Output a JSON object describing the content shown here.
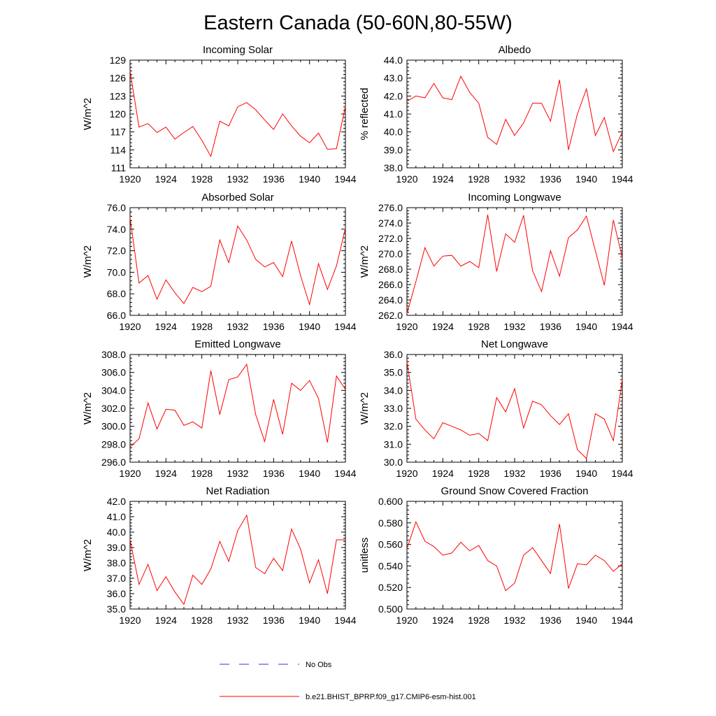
{
  "title": "Eastern Canada (50-60N,80-55W)",
  "legend": {
    "entries": [
      {
        "label": "No Obs",
        "color": "#3333cc",
        "style": "dashed"
      },
      {
        "label": "b.e21.BHIST_BPRP.f09_g17.CMIP6-esm-hist.001",
        "color": "#ff0000",
        "style": "solid"
      }
    ]
  },
  "chart_data": [
    {
      "type": "line",
      "title": "Incoming Solar",
      "xlabel": "",
      "ylabel": "W/m^2",
      "x": [
        1920,
        1921,
        1922,
        1923,
        1924,
        1925,
        1926,
        1927,
        1928,
        1929,
        1930,
        1931,
        1932,
        1933,
        1934,
        1935,
        1936,
        1937,
        1938,
        1939,
        1940,
        1941,
        1942,
        1943,
        1944
      ],
      "xlim": [
        1920,
        1944
      ],
      "xticks": [
        "1920",
        "1924",
        "1928",
        "1932",
        "1936",
        "1940",
        "1944"
      ],
      "ylim": [
        111,
        129
      ],
      "yticks": [
        "111",
        "114",
        "117",
        "120",
        "123",
        "126",
        "129"
      ],
      "series": [
        {
          "name": "b.e21.BHIST_BPRP.f09_g17.CMIP6-esm-hist.001",
          "color": "#ff0000",
          "values": [
            127.2,
            117.8,
            118.4,
            116.9,
            117.8,
            115.8,
            116.9,
            117.9,
            115.6,
            112.9,
            118.8,
            118.0,
            121.2,
            121.9,
            120.7,
            119.0,
            117.4,
            120.0,
            118.0,
            116.3,
            115.2,
            116.8,
            114.1,
            114.2,
            121.3
          ]
        }
      ]
    },
    {
      "type": "line",
      "title": "Albedo",
      "xlabel": "",
      "ylabel": "% reflected",
      "x": [
        1920,
        1921,
        1922,
        1923,
        1924,
        1925,
        1926,
        1927,
        1928,
        1929,
        1930,
        1931,
        1932,
        1933,
        1934,
        1935,
        1936,
        1937,
        1938,
        1939,
        1940,
        1941,
        1942,
        1943,
        1944
      ],
      "xlim": [
        1920,
        1944
      ],
      "xticks": [
        "1920",
        "1924",
        "1928",
        "1932",
        "1936",
        "1940",
        "1944"
      ],
      "ylim": [
        38,
        44
      ],
      "yticks": [
        "38.0",
        "39.0",
        "40.0",
        "41.0",
        "42.0",
        "43.0",
        "44.0"
      ],
      "series": [
        {
          "name": "b.e21.BHIST_BPRP.f09_g17.CMIP6-esm-hist.001",
          "color": "#ff0000",
          "values": [
            41.7,
            42.0,
            41.9,
            42.7,
            41.9,
            41.8,
            43.1,
            42.2,
            41.6,
            39.7,
            39.3,
            40.7,
            39.8,
            40.5,
            41.6,
            41.6,
            40.6,
            42.9,
            39.0,
            41.0,
            42.4,
            39.8,
            40.8,
            38.9,
            40.0
          ]
        }
      ]
    },
    {
      "type": "line",
      "title": "Absorbed Solar",
      "xlabel": "",
      "ylabel": "W/m^2",
      "x": [
        1920,
        1921,
        1922,
        1923,
        1924,
        1925,
        1926,
        1927,
        1928,
        1929,
        1930,
        1931,
        1932,
        1933,
        1934,
        1935,
        1936,
        1937,
        1938,
        1939,
        1940,
        1941,
        1942,
        1943,
        1944
      ],
      "xlim": [
        1920,
        1944
      ],
      "xticks": [
        "1920",
        "1924",
        "1928",
        "1932",
        "1936",
        "1940",
        "1944"
      ],
      "ylim": [
        66,
        76
      ],
      "yticks": [
        "66.0",
        "68.0",
        "70.0",
        "72.0",
        "74.0",
        "76.0"
      ],
      "series": [
        {
          "name": "b.e21.BHIST_BPRP.f09_g17.CMIP6-esm-hist.001",
          "color": "#ff0000",
          "values": [
            75.1,
            69.0,
            69.7,
            67.5,
            69.3,
            68.1,
            67.1,
            68.6,
            68.2,
            68.7,
            73.0,
            70.9,
            74.3,
            73.0,
            71.2,
            70.5,
            70.9,
            69.6,
            72.9,
            69.7,
            67.0,
            70.8,
            68.4,
            70.6,
            74.1
          ]
        }
      ]
    },
    {
      "type": "line",
      "title": "Incoming Longwave",
      "xlabel": "",
      "ylabel": "W/m^2",
      "x": [
        1920,
        1921,
        1922,
        1923,
        1924,
        1925,
        1926,
        1927,
        1928,
        1929,
        1930,
        1931,
        1932,
        1933,
        1934,
        1935,
        1936,
        1937,
        1938,
        1939,
        1940,
        1941,
        1942,
        1943,
        1944
      ],
      "xlim": [
        1920,
        1944
      ],
      "xticks": [
        "1920",
        "1924",
        "1928",
        "1932",
        "1936",
        "1940",
        "1944"
      ],
      "ylim": [
        262,
        276
      ],
      "yticks": [
        "262.0",
        "264.0",
        "266.0",
        "268.0",
        "270.0",
        "272.0",
        "274.0",
        "276.0"
      ],
      "series": [
        {
          "name": "b.e21.BHIST_BPRP.f09_g17.CMIP6-esm-hist.001",
          "color": "#ff0000",
          "values": [
            262.2,
            266.4,
            270.8,
            268.4,
            269.7,
            269.8,
            268.4,
            269.0,
            268.2,
            275.1,
            267.7,
            272.6,
            271.5,
            275.0,
            267.8,
            265.1,
            270.4,
            267.1,
            272.1,
            273.1,
            274.9,
            270.4,
            265.9,
            274.4,
            269.5
          ]
        }
      ]
    },
    {
      "type": "line",
      "title": "Emitted Longwave",
      "xlabel": "",
      "ylabel": "W/m^2",
      "x": [
        1920,
        1921,
        1922,
        1923,
        1924,
        1925,
        1926,
        1927,
        1928,
        1929,
        1930,
        1931,
        1932,
        1933,
        1934,
        1935,
        1936,
        1937,
        1938,
        1939,
        1940,
        1941,
        1942,
        1943,
        1944
      ],
      "xlim": [
        1920,
        1944
      ],
      "xticks": [
        "1920",
        "1924",
        "1928",
        "1932",
        "1936",
        "1940",
        "1944"
      ],
      "ylim": [
        296,
        308
      ],
      "yticks": [
        "296.0",
        "298.0",
        "300.0",
        "302.0",
        "304.0",
        "306.0",
        "308.0"
      ],
      "series": [
        {
          "name": "b.e21.BHIST_BPRP.f09_g17.CMIP6-esm-hist.001",
          "color": "#ff0000",
          "values": [
            297.7,
            298.6,
            302.6,
            299.7,
            301.9,
            301.8,
            300.1,
            300.5,
            299.8,
            306.2,
            301.3,
            305.2,
            305.5,
            306.9,
            301.3,
            298.3,
            303.0,
            299.1,
            304.8,
            304.0,
            305.1,
            303.1,
            298.2,
            305.6,
            304.1
          ]
        }
      ]
    },
    {
      "type": "line",
      "title": "Net Longwave",
      "xlabel": "",
      "ylabel": "W/m^2",
      "x": [
        1920,
        1921,
        1922,
        1923,
        1924,
        1925,
        1926,
        1927,
        1928,
        1929,
        1930,
        1931,
        1932,
        1933,
        1934,
        1935,
        1936,
        1937,
        1938,
        1939,
        1940,
        1941,
        1942,
        1943,
        1944
      ],
      "xlim": [
        1920,
        1944
      ],
      "xticks": [
        "1920",
        "1924",
        "1928",
        "1932",
        "1936",
        "1940",
        "1944"
      ],
      "ylim": [
        30,
        36
      ],
      "yticks": [
        "30.0",
        "31.0",
        "32.0",
        "33.0",
        "34.0",
        "35.0",
        "36.0"
      ],
      "series": [
        {
          "name": "b.e21.BHIST_BPRP.f09_g17.CMIP6-esm-hist.001",
          "color": "#ff0000",
          "values": [
            35.6,
            32.4,
            31.8,
            31.3,
            32.2,
            32.0,
            31.8,
            31.5,
            31.6,
            31.2,
            33.6,
            32.8,
            34.1,
            31.9,
            33.4,
            33.2,
            32.6,
            32.1,
            32.7,
            30.7,
            30.2,
            32.7,
            32.4,
            31.2,
            34.6
          ]
        }
      ]
    },
    {
      "type": "line",
      "title": "Net Radiation",
      "xlabel": "",
      "ylabel": "W/m^2",
      "x": [
        1920,
        1921,
        1922,
        1923,
        1924,
        1925,
        1926,
        1927,
        1928,
        1929,
        1930,
        1931,
        1932,
        1933,
        1934,
        1935,
        1936,
        1937,
        1938,
        1939,
        1940,
        1941,
        1942,
        1943,
        1944
      ],
      "xlim": [
        1920,
        1944
      ],
      "xticks": [
        "1920",
        "1924",
        "1928",
        "1932",
        "1936",
        "1940",
        "1944"
      ],
      "ylim": [
        35,
        42
      ],
      "yticks": [
        "35.0",
        "36.0",
        "37.0",
        "38.0",
        "39.0",
        "40.0",
        "41.0",
        "42.0"
      ],
      "series": [
        {
          "name": "b.e21.BHIST_BPRP.f09_g17.CMIP6-esm-hist.001",
          "color": "#ff0000",
          "values": [
            39.5,
            36.6,
            37.9,
            36.2,
            37.1,
            36.1,
            35.3,
            37.2,
            36.6,
            37.6,
            39.4,
            38.1,
            40.1,
            41.1,
            37.7,
            37.3,
            38.3,
            37.5,
            40.2,
            38.9,
            36.7,
            38.2,
            36.0,
            39.5,
            39.5
          ]
        }
      ]
    },
    {
      "type": "line",
      "title": "Ground Snow Covered Fraction",
      "xlabel": "",
      "ylabel": "unitless",
      "x": [
        1920,
        1921,
        1922,
        1923,
        1924,
        1925,
        1926,
        1927,
        1928,
        1929,
        1930,
        1931,
        1932,
        1933,
        1934,
        1935,
        1936,
        1937,
        1938,
        1939,
        1940,
        1941,
        1942,
        1943,
        1944
      ],
      "xlim": [
        1920,
        1944
      ],
      "xticks": [
        "1920",
        "1924",
        "1928",
        "1932",
        "1936",
        "1940",
        "1944"
      ],
      "ylim": [
        0.5,
        0.6
      ],
      "yticks": [
        "0.500",
        "0.520",
        "0.540",
        "0.560",
        "0.580",
        "0.600"
      ],
      "series": [
        {
          "name": "b.e21.BHIST_BPRP.f09_g17.CMIP6-esm-hist.001",
          "color": "#ff0000",
          "values": [
            0.556,
            0.581,
            0.563,
            0.558,
            0.55,
            0.552,
            0.562,
            0.554,
            0.559,
            0.545,
            0.54,
            0.517,
            0.524,
            0.55,
            0.557,
            0.545,
            0.533,
            0.579,
            0.519,
            0.542,
            0.541,
            0.55,
            0.545,
            0.535,
            0.542
          ]
        }
      ]
    }
  ]
}
